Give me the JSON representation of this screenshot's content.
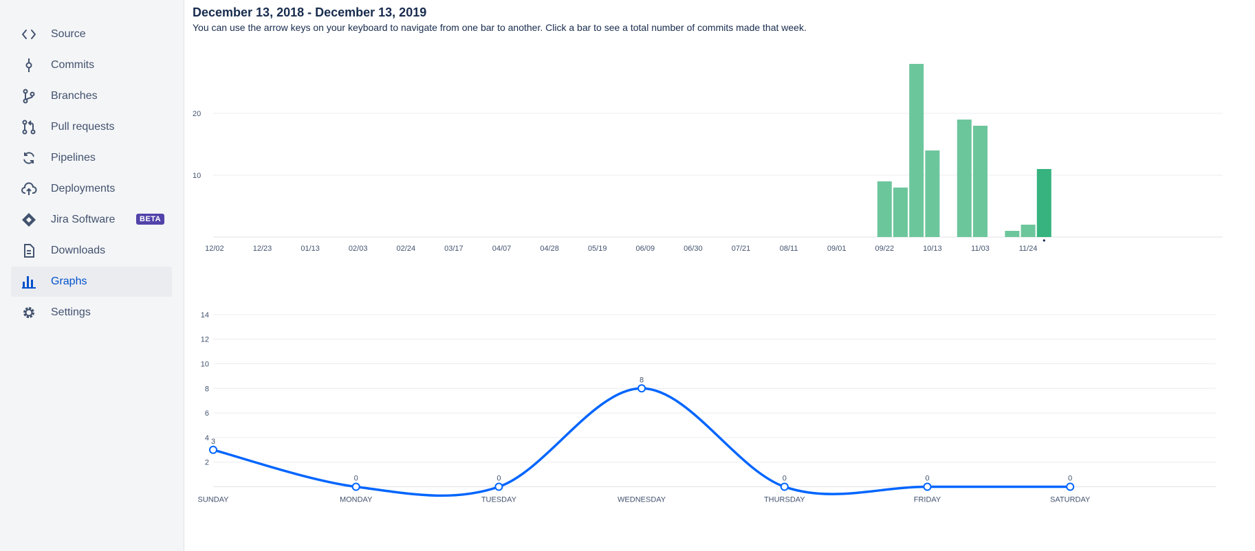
{
  "sidebar": {
    "items": [
      {
        "label": "Source",
        "icon": "code-icon"
      },
      {
        "label": "Commits",
        "icon": "commit-icon"
      },
      {
        "label": "Branches",
        "icon": "branch-icon"
      },
      {
        "label": "Pull requests",
        "icon": "pull-request-icon"
      },
      {
        "label": "Pipelines",
        "icon": "pipelines-icon"
      },
      {
        "label": "Deployments",
        "icon": "cloud-upload-icon"
      },
      {
        "label": "Jira Software",
        "icon": "jira-icon",
        "badge": "BETA"
      },
      {
        "label": "Downloads",
        "icon": "document-icon"
      },
      {
        "label": "Graphs",
        "icon": "bar-chart-icon",
        "active": true
      },
      {
        "label": "Settings",
        "icon": "gear-icon"
      }
    ]
  },
  "header": {
    "title": "December 13, 2018 - December 13, 2019",
    "subtitle": "You can use the arrow keys on your keyboard to navigate from one bar to another. Click a bar to see a total number of commits made that week."
  },
  "colors": {
    "bar": "#6cc69c",
    "bar_selected": "#36b37e",
    "line": "#0065ff",
    "accent": "#0052cc",
    "badge": "#5243aa"
  },
  "chart_data": [
    {
      "type": "bar",
      "title": "",
      "xlabel": "",
      "ylabel": "",
      "x_tick_labels": [
        "12/02",
        "12/23",
        "01/13",
        "02/03",
        "02/24",
        "03/17",
        "04/07",
        "04/28",
        "05/19",
        "06/09",
        "06/30",
        "07/21",
        "08/11",
        "09/01",
        "09/22",
        "10/13",
        "11/03",
        "11/24"
      ],
      "y_ticks": [
        10,
        20
      ],
      "ylim": [
        0,
        28
      ],
      "grid": true,
      "categories": [
        "12/02",
        "12/09",
        "12/16",
        "12/23",
        "12/30",
        "01/06",
        "01/13",
        "01/20",
        "01/27",
        "02/03",
        "02/10",
        "02/17",
        "02/24",
        "03/03",
        "03/10",
        "03/17",
        "03/24",
        "03/31",
        "04/07",
        "04/14",
        "04/21",
        "04/28",
        "05/05",
        "05/12",
        "05/19",
        "05/26",
        "06/02",
        "06/09",
        "06/16",
        "06/23",
        "06/30",
        "07/07",
        "07/14",
        "07/21",
        "07/28",
        "08/04",
        "08/11",
        "08/18",
        "08/25",
        "09/01",
        "09/08",
        "09/15",
        "09/22",
        "09/29",
        "10/06",
        "10/13",
        "10/20",
        "10/27",
        "11/03",
        "11/10",
        "11/17",
        "11/24",
        "12/01",
        "12/08"
      ],
      "values": [
        0,
        0,
        0,
        0,
        0,
        0,
        0,
        0,
        0,
        0,
        0,
        0,
        0,
        0,
        0,
        0,
        0,
        0,
        0,
        0,
        0,
        0,
        0,
        0,
        0,
        0,
        0,
        0,
        0,
        0,
        0,
        0,
        0,
        0,
        0,
        0,
        0,
        0,
        0,
        0,
        0,
        0,
        9,
        8,
        28,
        14,
        0,
        19,
        18,
        0,
        1,
        2,
        11,
        0
      ],
      "selected_index": 52
    },
    {
      "type": "line",
      "title": "",
      "xlabel": "",
      "ylabel": "",
      "categories": [
        "SUNDAY",
        "MONDAY",
        "TUESDAY",
        "WEDNESDAY",
        "THURSDAY",
        "FRIDAY",
        "SATURDAY"
      ],
      "values": [
        3,
        0,
        0,
        8,
        0,
        0,
        0
      ],
      "y_ticks": [
        2,
        4,
        6,
        8,
        10,
        12,
        14
      ],
      "ylim": [
        0,
        14
      ],
      "grid": true
    }
  ]
}
